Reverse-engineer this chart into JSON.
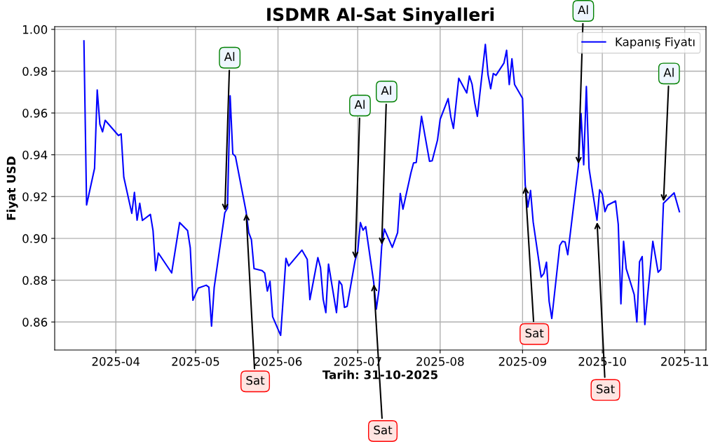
{
  "chart_data": {
    "type": "line",
    "title": "ISDMR Al-Sat Sinyalleri",
    "xlabel": "Tarih: 31-10-2025",
    "ylabel": "Fiyat USD",
    "x": [
      "2025-03-20",
      "2025-03-21",
      "2025-03-24",
      "2025-03-25",
      "2025-03-26",
      "2025-03-27",
      "2025-03-28",
      "2025-04-02",
      "2025-04-03",
      "2025-04-04",
      "2025-04-07",
      "2025-04-08",
      "2025-04-09",
      "2025-04-10",
      "2025-04-11",
      "2025-04-14",
      "2025-04-15",
      "2025-04-16",
      "2025-04-17",
      "2025-04-22",
      "2025-04-25",
      "2025-04-28",
      "2025-04-29",
      "2025-04-30",
      "2025-05-02",
      "2025-05-05",
      "2025-05-06",
      "2025-05-07",
      "2025-05-08",
      "2025-05-12",
      "2025-05-13",
      "2025-05-14",
      "2025-05-15",
      "2025-05-16",
      "2025-05-20",
      "2025-05-21",
      "2025-05-22",
      "2025-05-23",
      "2025-05-26",
      "2025-05-27",
      "2025-05-28",
      "2025-05-29",
      "2025-05-30",
      "2025-06-02",
      "2025-06-04",
      "2025-06-05",
      "2025-06-10",
      "2025-06-12",
      "2025-06-13",
      "2025-06-16",
      "2025-06-17",
      "2025-06-18",
      "2025-06-19",
      "2025-06-20",
      "2025-06-23",
      "2025-06-24",
      "2025-06-25",
      "2025-06-26",
      "2025-06-27",
      "2025-06-30",
      "2025-07-01",
      "2025-07-02",
      "2025-07-03",
      "2025-07-04",
      "2025-07-07",
      "2025-07-08",
      "2025-07-09",
      "2025-07-10",
      "2025-07-11",
      "2025-07-14",
      "2025-07-16",
      "2025-07-17",
      "2025-07-18",
      "2025-07-21",
      "2025-07-22",
      "2025-07-23",
      "2025-07-25",
      "2025-07-28",
      "2025-07-29",
      "2025-07-31",
      "2025-08-01",
      "2025-08-04",
      "2025-08-05",
      "2025-08-06",
      "2025-08-08",
      "2025-08-11",
      "2025-08-12",
      "2025-08-13",
      "2025-08-14",
      "2025-08-15",
      "2025-08-18",
      "2025-08-19",
      "2025-08-20",
      "2025-08-21",
      "2025-08-22",
      "2025-08-25",
      "2025-08-26",
      "2025-08-27",
      "2025-08-28",
      "2025-08-29",
      "2025-09-01",
      "2025-09-02",
      "2025-09-03",
      "2025-09-04",
      "2025-09-05",
      "2025-09-08",
      "2025-09-09",
      "2025-09-10",
      "2025-09-11",
      "2025-09-12",
      "2025-09-15",
      "2025-09-16",
      "2025-09-17",
      "2025-09-18",
      "2025-09-22",
      "2025-09-23",
      "2025-09-24",
      "2025-09-25",
      "2025-09-26",
      "2025-09-29",
      "2025-09-30",
      "2025-10-01",
      "2025-10-02",
      "2025-10-03",
      "2025-10-06",
      "2025-10-07",
      "2025-10-08",
      "2025-10-09",
      "2025-10-10",
      "2025-10-13",
      "2025-10-14",
      "2025-10-15",
      "2025-10-16",
      "2025-10-17",
      "2025-10-20",
      "2025-10-22",
      "2025-10-23",
      "2025-10-24",
      "2025-10-28",
      "2025-10-30"
    ],
    "series": [
      {
        "name": "Kapanış Fiyatı",
        "color": "#0000ff",
        "values": [
          0.9945,
          0.916,
          0.9335,
          0.971,
          0.9546,
          0.951,
          0.9565,
          0.9492,
          0.95,
          0.9293,
          0.912,
          0.922,
          0.9087,
          0.9168,
          0.9086,
          0.9115,
          0.9037,
          0.8846,
          0.893,
          0.8835,
          0.9076,
          0.9037,
          0.8955,
          0.8704,
          0.8762,
          0.8776,
          0.8767,
          0.858,
          0.8765,
          0.9123,
          0.9145,
          0.9682,
          0.9405,
          0.9392,
          0.9128,
          0.9028,
          0.8994,
          0.8855,
          0.8846,
          0.8834,
          0.8748,
          0.8795,
          0.8625,
          0.8536,
          0.8905,
          0.8868,
          0.8944,
          0.89,
          0.8707,
          0.8908,
          0.886,
          0.8709,
          0.8645,
          0.8877,
          0.8645,
          0.8796,
          0.8778,
          0.867,
          0.8675,
          0.8894,
          0.8939,
          0.9076,
          0.9039,
          0.9056,
          0.879,
          0.8662,
          0.8754,
          0.8961,
          0.9045,
          0.8957,
          0.9028,
          0.9215,
          0.914,
          0.9313,
          0.9361,
          0.9363,
          0.9584,
          0.9369,
          0.9371,
          0.947,
          0.957,
          0.9669,
          0.9582,
          0.9526,
          0.9766,
          0.9696,
          0.9777,
          0.9738,
          0.9649,
          0.9584,
          0.9928,
          0.9783,
          0.9716,
          0.9789,
          0.978,
          0.9839,
          0.99,
          0.9736,
          0.9859,
          0.9736,
          0.967,
          0.9257,
          0.915,
          0.9229,
          0.9078,
          0.8815,
          0.8832,
          0.8886,
          0.8698,
          0.8617,
          0.8966,
          0.8986,
          0.8983,
          0.8922,
          0.9347,
          0.9598,
          0.9352,
          0.9727,
          0.9336,
          0.9087,
          0.9233,
          0.9212,
          0.9128,
          0.9159,
          0.9179,
          0.9067,
          0.8687,
          0.8986,
          0.8855,
          0.8731,
          0.86,
          0.8888,
          0.8913,
          0.8588,
          0.8986,
          0.8838,
          0.8852,
          0.9168,
          0.9218,
          0.9128
        ]
      }
    ],
    "xlim": [
      "2025-03-09",
      "2025-11-09"
    ],
    "xticks": [
      "2025-04",
      "2025-05",
      "2025-06",
      "2025-07",
      "2025-08",
      "2025-09",
      "2025-10",
      "2025-11"
    ],
    "ylim": [
      0.8466,
      1.0013
    ],
    "yticks": [
      0.86,
      0.88,
      {
        "value": 0.9,
        "label": "0.90"
      },
      0.92,
      0.94,
      0.96,
      0.98,
      {
        "value": 1.0,
        "label": "1.00"
      }
    ],
    "grid": true,
    "legend": "top right",
    "marker": "none",
    "line_style": "solid",
    "annotations": [
      {
        "text": "Al",
        "x": "2025-05-12",
        "y": 0.9123
      },
      {
        "text": "Al",
        "x": "2025-06-30",
        "y": 0.8894
      },
      {
        "text": "Al",
        "x": "2025-07-10",
        "y": 0.8961
      },
      {
        "text": "Al",
        "x": "2025-09-22",
        "y": 0.9347
      },
      {
        "text": "Al",
        "x": "2025-10-24",
        "y": 0.9168
      },
      {
        "text": "Sat",
        "x": "2025-05-20",
        "y": 0.9128
      },
      {
        "text": "Sat",
        "x": "2025-07-07",
        "y": 0.879
      },
      {
        "text": "Sat",
        "x": "2025-09-02",
        "y": 0.9257
      },
      {
        "text": "Sat",
        "x": "2025-09-29",
        "y": 0.9087
      }
    ]
  }
}
